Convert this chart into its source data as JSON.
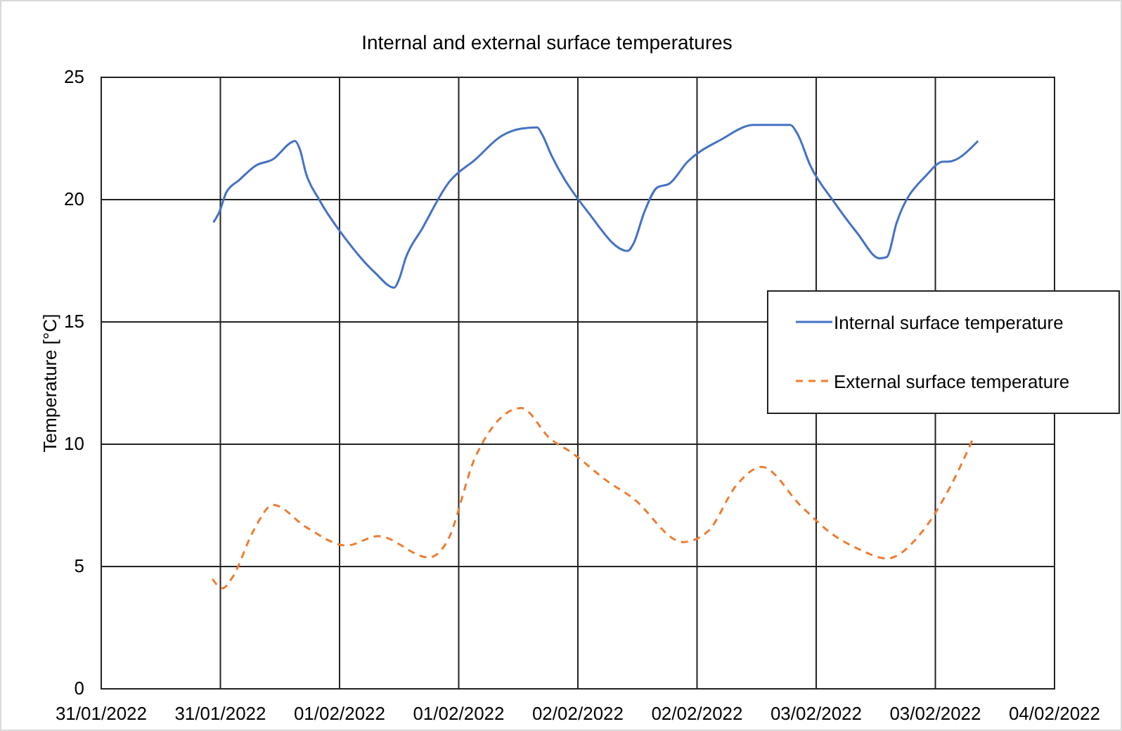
{
  "chart_data": {
    "type": "line",
    "title": "Internal and external surface temperatures",
    "ylabel": "Temperature [°C]",
    "xlim": [
      "2022-01-31T00:00",
      "2022-02-04T00:00"
    ],
    "xticks": [
      {
        "value": "2022-01-31T00:00",
        "label": "31/01/2022"
      },
      {
        "value": "2022-01-31T12:00",
        "label": "31/01/2022"
      },
      {
        "value": "2022-02-01T00:00",
        "label": "01/02/2022"
      },
      {
        "value": "2022-02-01T12:00",
        "label": "01/02/2022"
      },
      {
        "value": "2022-02-02T00:00",
        "label": "02/02/2022"
      },
      {
        "value": "2022-02-02T12:00",
        "label": "02/02/2022"
      },
      {
        "value": "2022-02-03T00:00",
        "label": "03/02/2022"
      },
      {
        "value": "2022-02-03T12:00",
        "label": "03/02/2022"
      },
      {
        "value": "2022-02-04T00:00",
        "label": "04/02/2022"
      }
    ],
    "ylim": [
      0,
      25
    ],
    "yticks": [
      0,
      5,
      10,
      15,
      20,
      25
    ],
    "grid": true,
    "legend": "right",
    "series": [
      {
        "name": "Internal surface temperature",
        "color": "#4472c4",
        "line_style": "solid",
        "x": [
          "2022-01-31T11:18",
          "2022-01-31T11:54",
          "2022-01-31T12:36",
          "2022-01-31T13:54",
          "2022-01-31T15:36",
          "2022-01-31T17:18",
          "2022-01-31T19:06",
          "2022-01-31T19:30",
          "2022-01-31T20:00",
          "2022-01-31T20:36",
          "2022-01-31T21:57",
          "2022-02-01T00:36",
          "2022-02-01T03:36",
          "2022-02-01T05:30",
          "2022-02-01T06:00",
          "2022-02-01T06:39",
          "2022-02-01T08:18",
          "2022-02-01T11:00",
          "2022-02-01T13:42",
          "2022-02-01T16:18",
          "2022-02-01T18:18",
          "2022-02-01T19:54",
          "2022-02-01T20:21",
          "2022-02-01T21:21",
          "2022-02-02T01:00",
          "2022-02-02T05:00",
          "2022-02-02T05:36",
          "2022-02-02T06:42",
          "2022-02-02T08:00",
          "2022-02-02T09:12",
          "2022-02-02T11:03",
          "2022-02-02T14:24",
          "2022-02-02T17:42",
          "2022-02-02T21:24",
          "2022-02-02T22:06",
          "2022-02-02T23:24",
          "2022-02-03T01:48",
          "2022-02-03T04:06",
          "2022-02-03T06:24",
          "2022-02-03T07:06",
          "2022-02-03T08:06",
          "2022-02-03T11:06",
          "2022-02-03T12:48",
          "2022-02-03T13:15",
          "2022-02-03T16:18"
        ],
        "values": [
          19.07,
          19.5,
          20.3,
          20.8,
          21.4,
          21.65,
          22.33,
          22.4,
          22.06,
          21.1,
          20.0,
          18.4,
          17.0,
          16.4,
          16.75,
          17.6,
          18.8,
          20.7,
          21.65,
          22.6,
          22.9,
          22.95,
          22.7,
          21.8,
          19.5,
          17.9,
          18.2,
          19.5,
          20.5,
          20.65,
          21.55,
          22.45,
          23.05,
          23.05,
          22.7,
          21.4,
          19.9,
          18.65,
          17.6,
          17.65,
          19.05,
          21.0,
          21.55,
          21.55,
          22.4
        ]
      },
      {
        "name": "External surface temperature",
        "color": "#ed7d31",
        "line_style": "dashed",
        "x": [
          "2022-01-31T11:12",
          "2022-01-31T12:12",
          "2022-01-31T13:12",
          "2022-01-31T15:18",
          "2022-01-31T17:18",
          "2022-01-31T20:42",
          "2022-02-01T00:42",
          "2022-02-01T03:54",
          "2022-02-01T09:00",
          "2022-02-01T10:48",
          "2022-02-01T13:42",
          "2022-02-01T18:18",
          "2022-02-01T21:12",
          "2022-02-01T23:24",
          "2022-02-02T03:00",
          "2022-02-02T05:30",
          "2022-02-02T10:36",
          "2022-02-02T13:06",
          "2022-02-02T16:00",
          "2022-02-02T18:30",
          "2022-02-02T22:30",
          "2022-02-03T01:42",
          "2022-02-03T04:18",
          "2022-02-03T07:06",
          "2022-02-03T10:42",
          "2022-02-03T13:36",
          "2022-02-03T15:48"
        ],
        "values": [
          4.49,
          4.11,
          4.55,
          6.44,
          7.52,
          6.59,
          5.86,
          6.24,
          5.37,
          6.0,
          9.5,
          11.48,
          10.23,
          9.65,
          8.48,
          7.81,
          6.0,
          6.44,
          8.34,
          9.07,
          7.46,
          6.3,
          5.71,
          5.33,
          6.44,
          8.34,
          10.23
        ]
      }
    ]
  }
}
